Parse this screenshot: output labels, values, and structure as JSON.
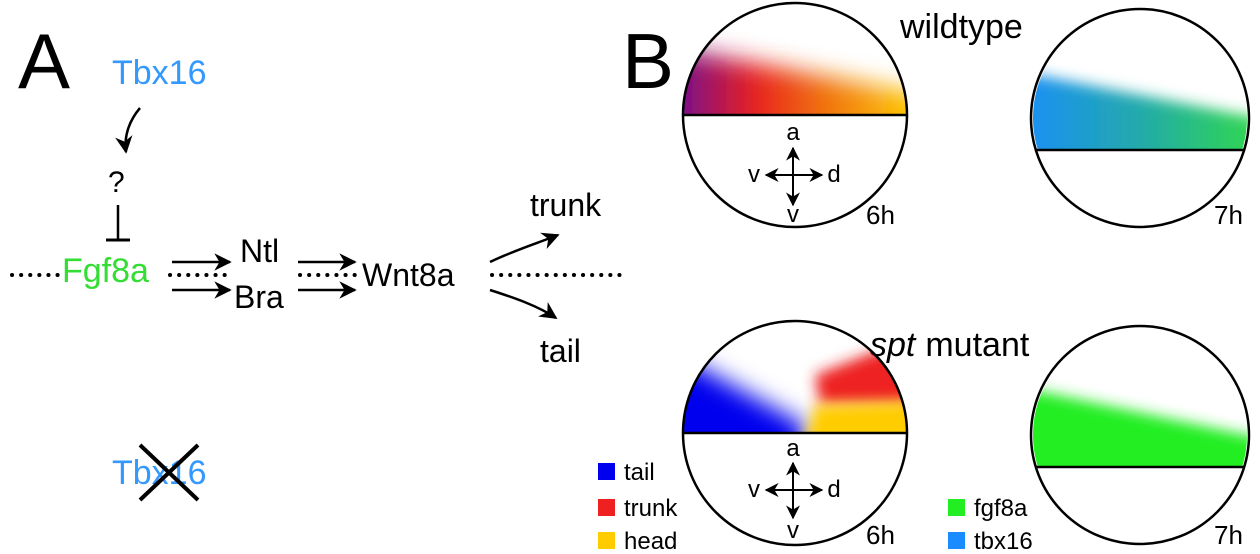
{
  "panel_a": {
    "label": "A",
    "upstream": "Tbx16",
    "unknown": "?",
    "fgf8a": "Fgf8a",
    "ntl": "Ntl",
    "bra": "Bra",
    "wnt8a": "Wnt8a",
    "trunk": "trunk",
    "tail": "tail",
    "knockout": "Tbx16"
  },
  "panel_b": {
    "label": "B",
    "wildtype": {
      "title": "wildtype",
      "embryo_6h": {
        "axis_a": "a",
        "axis_v_left": "v",
        "axis_d": "d",
        "axis_v_bottom": "v",
        "time": "6h"
      },
      "embryo_7h": {
        "time": "7h"
      }
    },
    "mutant": {
      "title_italic": "spt",
      "title_rest": "mutant",
      "embryo_6h": {
        "axis_a": "a",
        "axis_v_left": "v",
        "axis_d": "d",
        "axis_v_bottom": "v",
        "time": "6h"
      },
      "embryo_7h": {
        "time": "7h"
      }
    },
    "legend_fate": [
      "tail",
      "trunk",
      "head"
    ],
    "legend_gene": [
      "fgf8a",
      "tbx16"
    ]
  }
}
